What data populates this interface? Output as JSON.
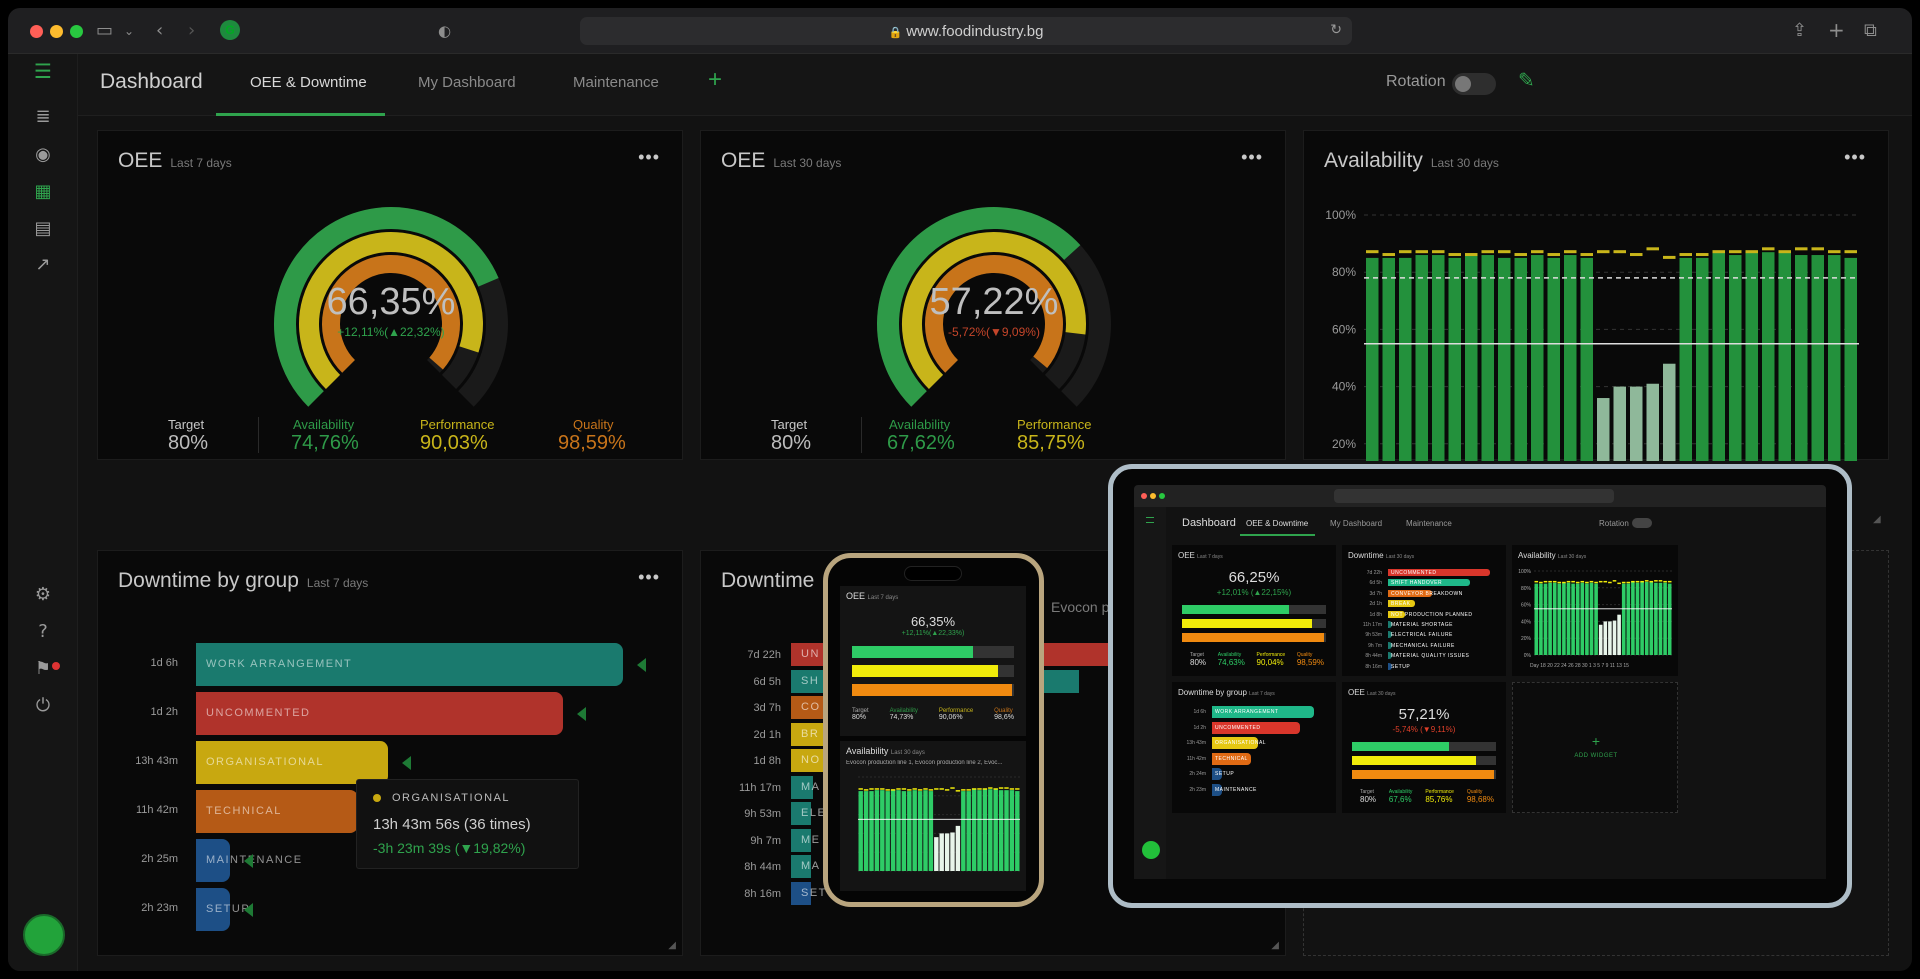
{
  "browser": {
    "url": "www.foodindustry.bg"
  },
  "topbar": {
    "title": "Dashboard",
    "tabs": [
      "OEE & Downtime",
      "My Dashboard",
      "Maintenance"
    ],
    "add_tab": "+",
    "rotation_label": "Rotation"
  },
  "colors": {
    "accent": "#2fa34d",
    "availability": "#2e9a48",
    "performance": "#c8b51a",
    "quality": "#c8741a",
    "target": "#9b9b9b"
  },
  "oee_7": {
    "title": "OEE",
    "sub": "Last 7 days",
    "value": "66,35%",
    "delta": "+12,11%(▲22,32%)",
    "availability_ring": 0.7476,
    "performance_ring": 0.9003,
    "quality_ring": 0.9859,
    "kpis": [
      {
        "label": "Target",
        "value": "80%"
      },
      {
        "label": "Availability",
        "value": "74,76%"
      },
      {
        "label": "Performance",
        "value": "90,03%"
      },
      {
        "label": "Quality",
        "value": "98,59%"
      }
    ]
  },
  "oee_30": {
    "title": "OEE",
    "sub": "Last 30 days",
    "value": "57,22%",
    "delta": "-5,72%(▼9,09%)",
    "availability_ring": 0.6762,
    "performance_ring": 0.8575,
    "quality_ring": 0.98,
    "kpis": [
      {
        "label": "Target",
        "value": "80%"
      },
      {
        "label": "Availability",
        "value": "67,62%"
      },
      {
        "label": "Performance",
        "value": "85,75%"
      }
    ]
  },
  "availability": {
    "title": "Availability",
    "sub": "Last 30 days",
    "ticks": [
      "100%",
      "80%",
      "60%",
      "40%",
      "20%"
    ]
  },
  "chart_data": {
    "type": "bar",
    "title": "Availability",
    "ylim": [
      0,
      100
    ],
    "target_line": 55,
    "values": [
      85,
      85,
      85,
      86,
      86,
      85,
      86,
      86,
      85,
      85,
      86,
      85,
      86,
      85,
      36,
      40,
      40,
      41,
      48,
      85,
      85,
      87,
      86,
      87,
      87,
      87,
      86,
      86,
      86,
      85
    ],
    "performance_marks": [
      87,
      86,
      87,
      87,
      87,
      86,
      86,
      87,
      87,
      86,
      87,
      86,
      87,
      86,
      87,
      87,
      86,
      88,
      85,
      86,
      86,
      87,
      87,
      87,
      88,
      87,
      88,
      88,
      87,
      87
    ],
    "quality_marks": [
      78,
      78,
      78,
      78,
      78,
      78,
      78,
      78,
      78,
      78,
      78,
      78,
      78,
      78,
      78,
      78,
      78,
      78,
      78,
      78,
      78,
      78,
      78,
      78,
      78,
      78,
      78,
      78,
      78,
      78
    ]
  },
  "downtime_group": {
    "title": "Downtime by group",
    "sub": "Last 7 days",
    "rows": [
      {
        "time": "1d 6h",
        "label": "WORK ARRANGEMENT",
        "color": "#1a7a6e",
        "frac": 1.0
      },
      {
        "time": "1d 2h",
        "label": "UNCOMMENTED",
        "color": "#b0332b",
        "frac": 0.86
      },
      {
        "time": "13h 43m",
        "label": "ORGANISATIONAL",
        "color": "#c8a810",
        "frac": 0.45
      },
      {
        "time": "11h 42m",
        "label": "TECHNICAL",
        "color": "#b55a16",
        "frac": 0.38
      },
      {
        "time": "2h 25m",
        "label": "MAINTENANCE",
        "color": "#1d4f86",
        "frac": 0.08
      },
      {
        "time": "2h 23m",
        "label": "SETUP",
        "color": "#1d4f86",
        "frac": 0.08
      }
    ],
    "tooltip": {
      "title": "ORGANISATIONAL",
      "line1": "13h 43m 56s (36 times)",
      "line2": "-3h 23m 39s (▼19,82%)"
    }
  },
  "downtime": {
    "title": "Downtime",
    "sub": "Evocon p",
    "rows": [
      {
        "time": "7d 22h",
        "label": "UN",
        "color": "#b0332b",
        "frac": 1.0
      },
      {
        "time": "6d 5h",
        "label": "SH",
        "color": "#1a7a6e",
        "frac": 0.8
      },
      {
        "time": "3d 7h",
        "label": "CO",
        "color": "#b55a16",
        "frac": 0.4
      },
      {
        "time": "2d 1h",
        "label": "BR",
        "color": "#c8a810",
        "frac": 0.26
      },
      {
        "time": "1d 8h",
        "label": "NO",
        "color": "#c8a810",
        "frac": 0.17
      },
      {
        "time": "11h 17m",
        "label": "MA",
        "color": "#1a7a6e",
        "frac": 0.06
      },
      {
        "time": "9h 53m",
        "label": "ELE",
        "color": "#1a7a6e",
        "frac": 0.05
      },
      {
        "time": "9h 7m",
        "label": "ME",
        "color": "#1a7a6e",
        "frac": 0.05
      },
      {
        "time": "8h 44m",
        "label": "MA",
        "color": "#1a7a6e",
        "frac": 0.05
      },
      {
        "time": "8h 16m",
        "label": "SETUP",
        "color": "#1d4f86",
        "frac": 0.04
      }
    ]
  },
  "phone": {
    "oee_title": "OEE",
    "oee_sub": "Last 7 days",
    "value": "66,35%",
    "delta": "+12,11%(▲22,33%)",
    "kpis": [
      {
        "label": "Target",
        "value": "80%"
      },
      {
        "label": "Availability",
        "value": "74,73%"
      },
      {
        "label": "Performance",
        "value": "90,06%"
      },
      {
        "label": "Quality",
        "value": "98,6%"
      }
    ],
    "avail_title": "Availability",
    "avail_sub": "Last 30 days",
    "avail_lines": "Evocon production line 1, Evocon production line 2, Evoc..."
  },
  "tablet": {
    "title": "Dashboard",
    "tabs": [
      "OEE & Downtime",
      "My Dashboard",
      "Maintenance"
    ],
    "rotation": "Rotation",
    "oee7": {
      "title": "OEE",
      "sub": "Last 7 days",
      "value": "66,25%",
      "delta": "+12,01% (▲22,15%)",
      "kpis": [
        {
          "label": "Target",
          "value": "80%"
        },
        {
          "label": "Availability",
          "value": "74,63%"
        },
        {
          "label": "Performance",
          "value": "90,04%"
        },
        {
          "label": "Quality",
          "value": "98,59%"
        }
      ]
    },
    "downtime": {
      "title": "Downtime",
      "sub": "Last 30 days",
      "rows": [
        {
          "time": "7d 22h",
          "label": "UNCOMMENTED",
          "color": "#d9362b",
          "frac": 1.0
        },
        {
          "time": "6d 5h",
          "label": "SHIFT HANDOVER",
          "color": "#1fb889",
          "frac": 0.8
        },
        {
          "time": "3d 7h",
          "label": "CONVEYOR BREAKDOWN",
          "color": "#e06a14",
          "frac": 0.43
        },
        {
          "time": "2d 1h",
          "label": "BREAK",
          "color": "#e6c812",
          "frac": 0.26
        },
        {
          "time": "1d 8h",
          "label": "NOT PRODUCTION PLANNED",
          "color": "#e6c812",
          "frac": 0.17
        },
        {
          "time": "11h 17m",
          "label": "MATERIAL SHORTAGE",
          "color": "#1a7a6e",
          "frac": 0.02
        },
        {
          "time": "9h 53m",
          "label": "ELECTRICAL FAILURE",
          "color": "#1a7a6e",
          "frac": 0.02
        },
        {
          "time": "9h 7m",
          "label": "MECHANICAL FAILURE",
          "color": "#1a7a6e",
          "frac": 0.02
        },
        {
          "time": "8h 44m",
          "label": "MATERIAL QUALITY ISSUES",
          "color": "#1a7a6e",
          "frac": 0.02
        },
        {
          "time": "8h 16m",
          "label": "SETUP",
          "color": "#1d4f86",
          "frac": 0.02
        }
      ]
    },
    "avail": {
      "title": "Availability",
      "sub": "Last 30 days",
      "ticks": [
        "100%",
        "80%",
        "60%",
        "40%",
        "20%",
        "0%"
      ],
      "xlabels": "Day  18  20  22  24  26  28  30  1  3  5  7  9  11  13  15"
    },
    "group": {
      "title": "Downtime by group",
      "sub": "Last 7 days",
      "rows": [
        {
          "time": "1d 6h",
          "label": "WORK ARRANGEMENT",
          "color": "#1fb889",
          "frac": 1.0
        },
        {
          "time": "1d 2h",
          "label": "UNCOMMENTED",
          "color": "#d9362b",
          "frac": 0.86
        },
        {
          "time": "13h 43m",
          "label": "ORGANISATIONAL",
          "color": "#e6c812",
          "frac": 0.45
        },
        {
          "time": "11h 42m",
          "label": "TECHNICAL",
          "color": "#e06a14",
          "frac": 0.38
        },
        {
          "time": "2h 24m",
          "label": "SETUP",
          "color": "#1d4f86",
          "frac": 0.08
        },
        {
          "time": "2h 23m",
          "label": "MAINTENANCE",
          "color": "#1d4f86",
          "frac": 0.08
        }
      ]
    },
    "oee30": {
      "title": "OEE",
      "sub": "Last 30 days",
      "value": "57,21%",
      "delta": "-5,74% (▼9,11%)",
      "kpis": [
        {
          "label": "Target",
          "value": "80%"
        },
        {
          "label": "Availability",
          "value": "67,6%"
        },
        {
          "label": "Performance",
          "value": "85,76%"
        },
        {
          "label": "Quality",
          "value": "98,68%"
        }
      ]
    },
    "add_widget": "ADD WIDGET"
  }
}
